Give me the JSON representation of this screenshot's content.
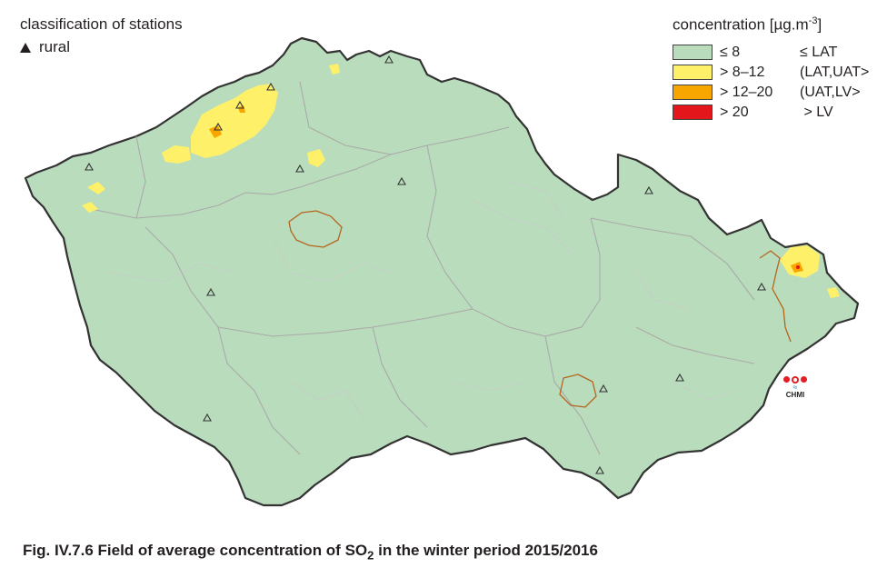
{
  "stations": {
    "title": "classification of stations",
    "rural_label": "rural"
  },
  "legend": {
    "title": "concentration [µg.m",
    "title_sup": "-3",
    "title_end": "]",
    "classes": [
      {
        "range": "≤ 8",
        "assessment": "≤ LAT",
        "color": "#b9dcbc"
      },
      {
        "range": "> 8–12",
        "assessment": "(LAT,UAT>",
        "color": "#fff06a"
      },
      {
        "range": "> 12–20",
        "assessment": "(UAT,LV>",
        "color": "#f7a600"
      },
      {
        "range": "> 20",
        "assessment": " > LV",
        "color": "#e3161b"
      }
    ]
  },
  "logo": {
    "text": "CHMI"
  },
  "caption": {
    "prefix": "Fig. IV.7.6  Field of average concentration of SO",
    "sub": "2",
    "suffix": " in the winter period 2015/2016"
  },
  "colors": {
    "background_fill": "#b9dcbc",
    "border": "#333333",
    "region_lines": "#a9aaa9",
    "city_outline": "#b5651d"
  }
}
